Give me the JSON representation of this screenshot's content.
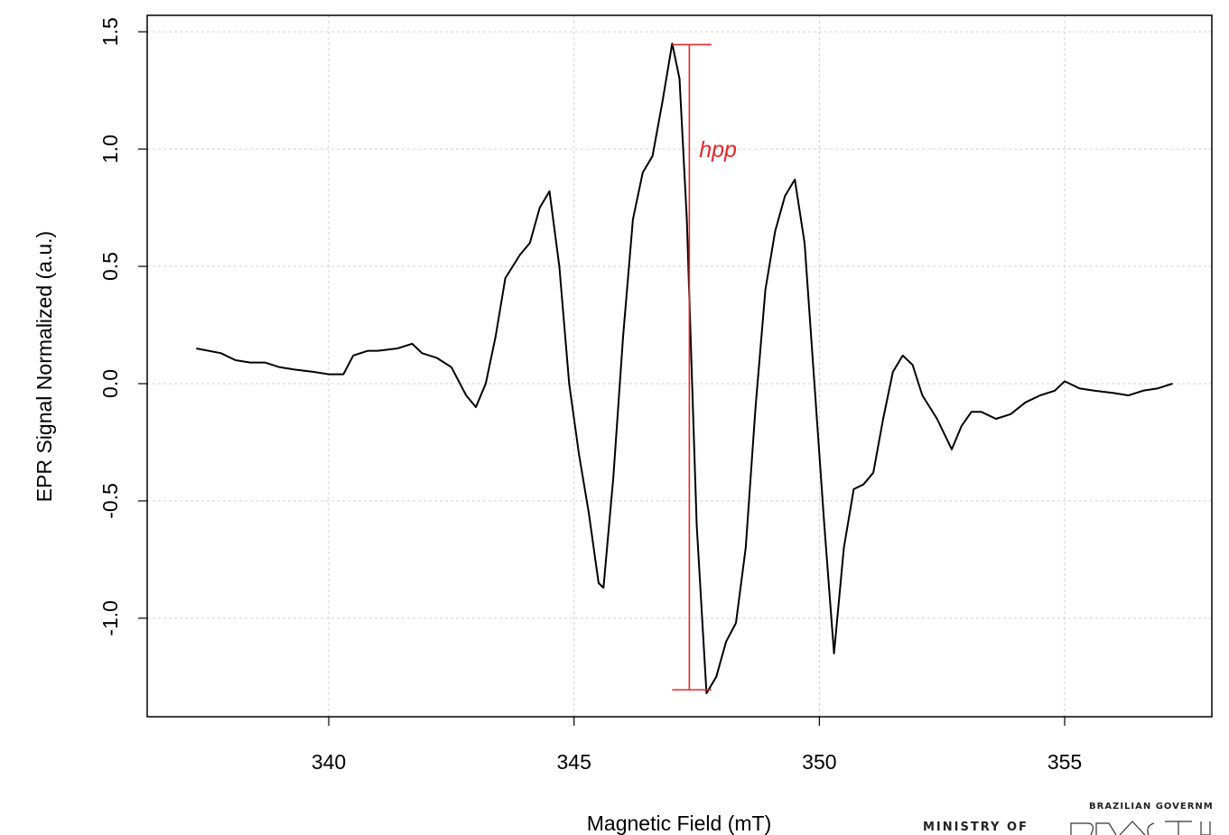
{
  "chart_data": {
    "type": "line",
    "title": "",
    "xlabel": "Magnetic Field (mT)",
    "ylabel": "EPR Signal Normalized (a.u.)",
    "xlim": [
      336.3,
      358.0
    ],
    "ylim": [
      -1.42,
      1.57
    ],
    "xticks": [
      340,
      345,
      350,
      355
    ],
    "yticks": [
      1.5,
      1.0,
      0.5,
      0.0,
      -0.5,
      -1.0
    ],
    "ytick_labels": [
      "1.5",
      "1.0",
      "0.5",
      "0.0",
      "-0.5",
      "-1.0"
    ],
    "grid": true,
    "series": [
      {
        "color": "#000000",
        "x": [
          337.3,
          337.8,
          338.1,
          338.4,
          338.7,
          339.0,
          339.3,
          339.7,
          340.0,
          340.3,
          340.5,
          340.8,
          341.0,
          341.4,
          341.7,
          341.9,
          342.2,
          342.5,
          342.8,
          343.0,
          343.2,
          343.4,
          343.6,
          343.9,
          344.1,
          344.3,
          344.5,
          344.7,
          344.9,
          345.1,
          345.3,
          345.5,
          345.6,
          345.8,
          346.0,
          346.2,
          346.4,
          346.6,
          346.8,
          347.0,
          347.15,
          347.3,
          347.5,
          347.7,
          347.9,
          348.1,
          348.3,
          348.5,
          348.7,
          348.9,
          349.1,
          349.3,
          349.5,
          349.7,
          349.9,
          350.1,
          350.3,
          350.5,
          350.7,
          350.9,
          351.1,
          351.3,
          351.5,
          351.7,
          351.9,
          352.1,
          352.4,
          352.7,
          352.9,
          353.1,
          353.3,
          353.6,
          353.9,
          354.2,
          354.5,
          354.8,
          355.0,
          355.3,
          355.6,
          356.0,
          356.3,
          356.6,
          356.9,
          357.2
        ],
        "y": [
          0.15,
          0.13,
          0.1,
          0.09,
          0.09,
          0.07,
          0.06,
          0.05,
          0.04,
          0.04,
          0.12,
          0.14,
          0.14,
          0.15,
          0.17,
          0.13,
          0.11,
          0.07,
          -0.05,
          -0.1,
          0.0,
          0.2,
          0.45,
          0.55,
          0.6,
          0.75,
          0.82,
          0.5,
          0.0,
          -0.3,
          -0.55,
          -0.85,
          -0.87,
          -0.4,
          0.2,
          0.7,
          0.9,
          0.97,
          1.2,
          1.45,
          1.3,
          0.7,
          -0.6,
          -1.32,
          -1.25,
          -1.1,
          -1.02,
          -0.7,
          -0.1,
          0.4,
          0.65,
          0.8,
          0.87,
          0.6,
          0.0,
          -0.6,
          -1.15,
          -0.7,
          -0.45,
          -0.43,
          -0.38,
          -0.15,
          0.05,
          0.12,
          0.08,
          -0.05,
          -0.15,
          -0.28,
          -0.18,
          -0.12,
          -0.12,
          -0.15,
          -0.13,
          -0.08,
          -0.05,
          -0.03,
          0.01,
          -0.02,
          -0.03,
          -0.04,
          -0.05,
          -0.03,
          -0.02,
          0.0
        ]
      }
    ],
    "annotations": [
      {
        "text": "hpp",
        "color": "#e8262b",
        "bracket_x": 347.35,
        "y_top": 1.445,
        "y_bottom": -1.305,
        "cap_x_left": 347.0,
        "cap_x_right": 347.8,
        "label_x": 347.55,
        "label_y": 1.0
      }
    ]
  },
  "logo": {
    "header": "BRAZILIAN GOVERNM",
    "ministry": "MINISTRY OF"
  }
}
